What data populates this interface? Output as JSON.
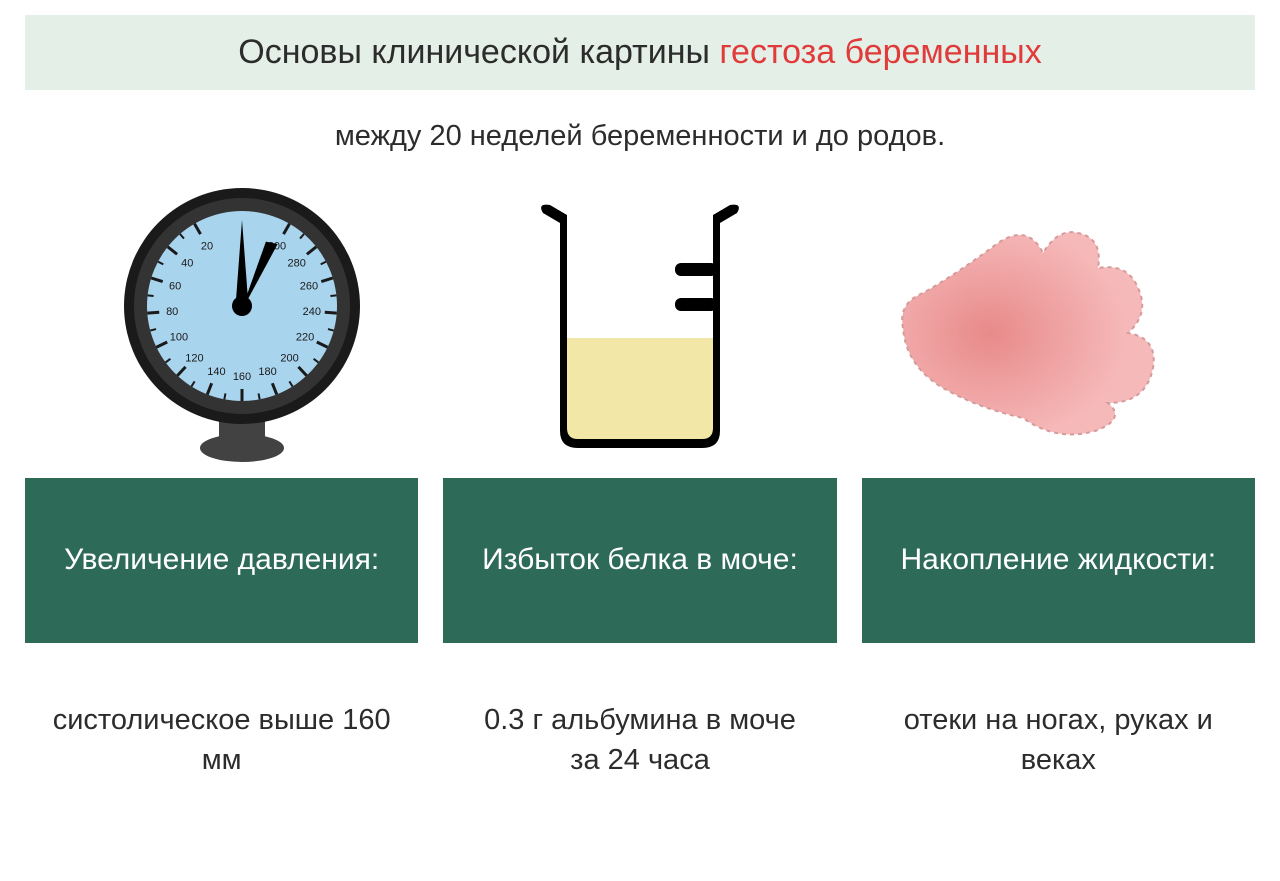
{
  "colors": {
    "title_bg": "#e4efe7",
    "title_text": "#2c2c2c",
    "title_accent": "#e03a3a",
    "subtitle_text": "#2c2c2c",
    "header_bg": "#2e6a58",
    "header_text": "#ffffff",
    "desc_text": "#2c2c2c",
    "gauge_face": "#a9d4ee",
    "gauge_rim_outer": "#1a1a1a",
    "gauge_rim_inner": "#333333",
    "gauge_base": "#424242",
    "beaker_stroke": "#000000",
    "beaker_liquid": "#f2e7a7",
    "hand_fill": "#f6b9b9",
    "hand_blush": "#e88a8a",
    "hand_outline": "#d59a9a"
  },
  "title": {
    "part1": "Основы клинической картины ",
    "part2": "гестоза беременных"
  },
  "subtitle": "между 20 неделей беременности и до родов.",
  "columns": [
    {
      "header": "Увеличение давления:",
      "desc": "систолическое выше 160 мм"
    },
    {
      "header": "Избыток белка в моче:",
      "desc": "0.3 г альбумина в моче за 24 часа"
    },
    {
      "header": "Накопление жидкости:",
      "desc": "отеки на ногах, руках и веках"
    }
  ],
  "gauge": {
    "ticks": [
      "20",
      "40",
      "60",
      "80",
      "100",
      "120",
      "140",
      "160",
      "180",
      "200",
      "220",
      "240",
      "260",
      "280",
      "300"
    ]
  }
}
